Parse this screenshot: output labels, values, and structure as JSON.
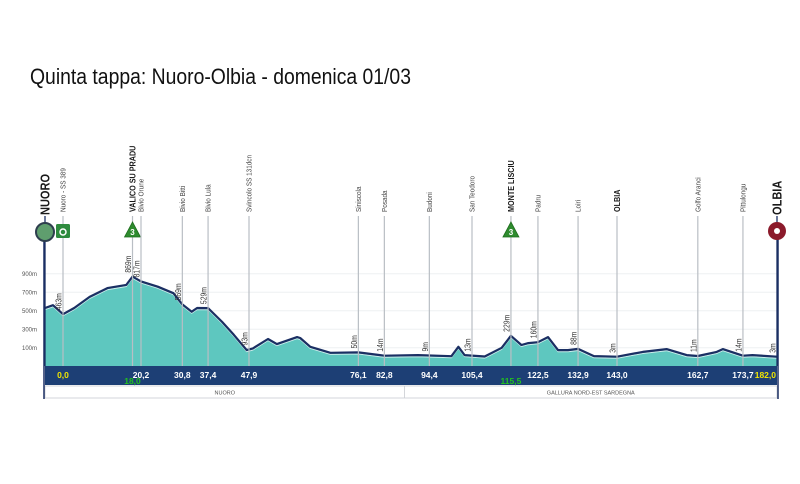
{
  "title": "Quinta tappa: Nuoro-Olbia - domenica 01/03",
  "chart_data": {
    "type": "area",
    "title": "Quinta tappa: Nuoro-Olbia - domenica 01/03",
    "xlabel": "km",
    "ylabel": "altitude (m)",
    "y_ticks": [
      {
        "value": 900,
        "label": "900m"
      },
      {
        "value": 700,
        "label": "700m"
      },
      {
        "value": 500,
        "label": "500m"
      },
      {
        "value": 300,
        "label": "300m"
      },
      {
        "value": 100,
        "label": "100m"
      }
    ],
    "colors": {
      "fill": "#5ec7bf",
      "line": "#1b2f63",
      "band": "#1d3f75",
      "km": "#ffffff",
      "km_start_end": "#f2e600",
      "km_kom": "#22c21e",
      "kom": "#2e8b2e",
      "start": "#5f9e6e",
      "finish": "#8b1a2b"
    },
    "profile": [
      [
        -5.2,
        530
      ],
      [
        -2.9,
        560
      ],
      [
        0,
        463
      ],
      [
        2.9,
        530
      ],
      [
        6.9,
        650
      ],
      [
        11.5,
        745
      ],
      [
        16.4,
        780
      ],
      [
        18.0,
        869
      ],
      [
        20.2,
        817
      ],
      [
        24.5,
        760
      ],
      [
        28.5,
        690
      ],
      [
        30.8,
        569
      ],
      [
        33.2,
        490
      ],
      [
        34.6,
        530
      ],
      [
        37.4,
        529
      ],
      [
        41,
        380
      ],
      [
        44,
        240
      ],
      [
        47.3,
        75
      ],
      [
        48.9,
        93
      ],
      [
        52.8,
        195
      ],
      [
        55.1,
        140
      ],
      [
        60.3,
        215
      ],
      [
        61.1,
        205
      ],
      [
        63.7,
        110
      ],
      [
        68.9,
        45
      ],
      [
        76.1,
        50
      ],
      [
        82.8,
        14
      ],
      [
        91.5,
        20
      ],
      [
        100.1,
        9
      ],
      [
        101.9,
        110
      ],
      [
        103.5,
        20
      ],
      [
        108.7,
        5
      ],
      [
        113.1,
        100
      ],
      [
        115.5,
        229
      ],
      [
        118.2,
        130
      ],
      [
        120,
        150
      ],
      [
        122.5,
        160
      ],
      [
        125.1,
        215
      ],
      [
        127.7,
        75
      ],
      [
        130.3,
        75
      ],
      [
        132.9,
        88
      ],
      [
        137,
        10
      ],
      [
        143,
        3
      ],
      [
        149.3,
        55
      ],
      [
        155.1,
        85
      ],
      [
        160,
        20
      ],
      [
        162.7,
        11
      ],
      [
        167.3,
        55
      ],
      [
        168.8,
        85
      ],
      [
        173.7,
        14
      ],
      [
        176,
        20
      ],
      [
        182,
        3
      ]
    ],
    "waypoints": [
      {
        "name": "NUORO",
        "km": -5.2,
        "km_label": "",
        "elev_label": "",
        "style": "city",
        "marker": "start"
      },
      {
        "name": "Nuoro - SS 389",
        "km": 0,
        "km_label": "0,0",
        "km_color": "start_end",
        "elev_label": "463m",
        "style": "normal",
        "marker": "sprint"
      },
      {
        "name": "VALICO SU PRADU",
        "km": 18.0,
        "km_label": "18,0",
        "km_color": "kom",
        "elev_label": "869m",
        "style": "bold",
        "marker": "kom",
        "kom_cat": "3"
      },
      {
        "name": "Bivio Orune",
        "km": 20.2,
        "km_label": "20,2",
        "elev_label": "817m",
        "style": "normal"
      },
      {
        "name": "Bivio Bitti",
        "km": 30.8,
        "km_label": "30,8",
        "elev_label": "569m",
        "style": "normal"
      },
      {
        "name": "Bivio Lula",
        "km": 37.4,
        "km_label": "37,4",
        "elev_label": "529m",
        "style": "normal"
      },
      {
        "name": "Svincolo SS 131dcn",
        "km": 47.9,
        "km_label": "47,9",
        "elev_label": "93m",
        "style": "normal"
      },
      {
        "name": "Siniscola",
        "km": 76.1,
        "km_label": "76,1",
        "elev_label": "50m",
        "style": "normal"
      },
      {
        "name": "Posada",
        "km": 82.8,
        "km_label": "82,8",
        "elev_label": "14m",
        "style": "normal"
      },
      {
        "name": "Budoni",
        "km": 94.4,
        "km_label": "94,4",
        "elev_label": "9m",
        "style": "normal"
      },
      {
        "name": "San Teodoro",
        "km": 105.4,
        "km_label": "105,4",
        "elev_label": "13m",
        "style": "normal"
      },
      {
        "name": "MONTE LISCIU",
        "km": 115.5,
        "km_label": "115,5",
        "km_color": "kom",
        "elev_label": "229m",
        "style": "bold",
        "marker": "kom",
        "kom_cat": "3"
      },
      {
        "name": "Padru",
        "km": 122.5,
        "km_label": "122,5",
        "elev_label": "160m",
        "style": "normal"
      },
      {
        "name": "Loiri",
        "km": 132.9,
        "km_label": "132,9",
        "elev_label": "88m",
        "style": "normal"
      },
      {
        "name": "OLBIA",
        "km": 143.0,
        "km_label": "143,0",
        "elev_label": "3m",
        "style": "bold"
      },
      {
        "name": "Golfo Aranci",
        "km": 162.7,
        "km_label": "162,7",
        "elev_label": "11m",
        "style": "normal"
      },
      {
        "name": "Pittulongu",
        "km": 173.7,
        "km_label": "173,7",
        "elev_label": "14m",
        "style": "normal"
      },
      {
        "name": "OLBIA",
        "km": 182.0,
        "km_label": "182,0",
        "km_color": "start_end",
        "elev_label": "3m",
        "style": "city",
        "marker": "finish"
      }
    ],
    "regions": [
      {
        "name": "NUORO",
        "from_km": -5.2,
        "to_km": 88
      },
      {
        "name": "GALLURA NORD-EST SARDEGNA",
        "from_km": 88,
        "to_km": 182
      }
    ],
    "xlim": [
      -5.2,
      182
    ],
    "ylim": [
      0,
      900
    ]
  }
}
